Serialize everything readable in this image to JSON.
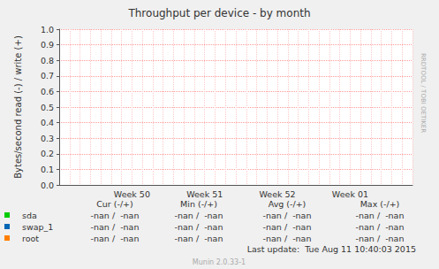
{
  "chart_data": {
    "type": "line",
    "title": "Throughput per device - by month",
    "y_label": "Bytes/second read (-) / write (+)",
    "categories": [
      null,
      null,
      null,
      null,
      null,
      null,
      null,
      "Week 50",
      null,
      null,
      null,
      null,
      null,
      null,
      "Week 51",
      null,
      null,
      null,
      null,
      null,
      null,
      "Week 52",
      null,
      null,
      null,
      null,
      null,
      null,
      "Week 01",
      null,
      null,
      null,
      null,
      null,
      null
    ],
    "series": [
      {
        "name": "sda",
        "color": "#00cc00",
        "values": [
          null,
          null,
          null,
          null,
          null,
          null,
          null,
          null,
          null,
          null,
          null,
          null,
          null,
          null,
          null,
          null,
          null,
          null,
          null,
          null,
          null,
          null,
          null,
          null,
          null,
          null,
          null,
          null,
          null,
          null,
          null,
          null,
          null,
          null,
          null
        ],
        "stats": [
          "-nan /  -nan",
          "-nan /  -nan",
          "-nan /  -nan",
          "-nan /  -nan"
        ]
      },
      {
        "name": "swap_1",
        "color": "#0066b3",
        "values": [
          null,
          null,
          null,
          null,
          null,
          null,
          null,
          null,
          null,
          null,
          null,
          null,
          null,
          null,
          null,
          null,
          null,
          null,
          null,
          null,
          null,
          null,
          null,
          null,
          null,
          null,
          null,
          null,
          null,
          null,
          null,
          null,
          null,
          null,
          null
        ],
        "stats": [
          "-nan /  -nan",
          "-nan /  -nan",
          "-nan /  -nan",
          "-nan /  -nan"
        ]
      },
      {
        "name": "root",
        "color": "#ff8000",
        "values": [
          null,
          null,
          null,
          null,
          null,
          null,
          null,
          null,
          null,
          null,
          null,
          null,
          null,
          null,
          null,
          null,
          null,
          null,
          null,
          null,
          null,
          null,
          null,
          null,
          null,
          null,
          null,
          null,
          null,
          null,
          null,
          null,
          null,
          null,
          null
        ],
        "stats": [
          "-nan /  -nan",
          "-nan /  -nan",
          "-nan /  -nan",
          "-nan /  -nan"
        ]
      }
    ],
    "ylim": [
      0,
      1
    ],
    "yticks": [
      {
        "value": 0,
        "label": "0.0"
      },
      0.1,
      0.2,
      0.3,
      0.4,
      0.5,
      0.6,
      0.7,
      0.8,
      0.9,
      {
        "value": 1,
        "label": "1.0"
      }
    ],
    "grid": true,
    "legend_columns": [
      "Cur (-/+)",
      "Min (-/+)",
      "Avg (-/+)",
      "Max (-/+)"
    ],
    "last_update": "Last update:  Tue Aug 11 10:40:03 2015",
    "footer": "Munin 2.0.33-1",
    "watermark": "RRDTOOL / TOBI OETIKER"
  }
}
